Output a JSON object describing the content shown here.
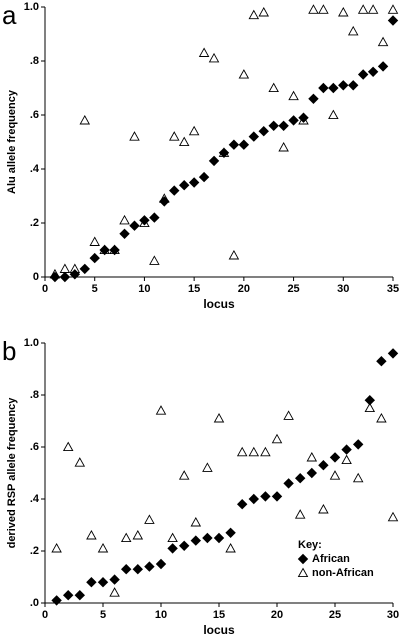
{
  "chart_data": [
    {
      "type": "scatter",
      "panel_label": "a",
      "x_label": "locus",
      "y_label": "Alu allele frequency",
      "xlim": [
        0,
        35
      ],
      "xticks": [
        0,
        5,
        10,
        15,
        20,
        25,
        30,
        35
      ],
      "ylim": [
        0,
        1
      ],
      "yticks": [
        0,
        {
          "value": 0.2,
          "label": ".2"
        },
        {
          "value": 0.4,
          "label": ".4"
        },
        {
          "value": 0.6,
          "label": ".6"
        },
        {
          "value": 0.8,
          "label": ".8"
        },
        {
          "value": 1,
          "label": "1.0"
        }
      ],
      "series": [
        {
          "marker": "diamond",
          "color": "#000000",
          "x": [
            1,
            2,
            3,
            4,
            5,
            6,
            7,
            8,
            9,
            10,
            11,
            12,
            13,
            14,
            15,
            16,
            17,
            18,
            19,
            20,
            21,
            22,
            23,
            24,
            25,
            26,
            27,
            28,
            29,
            30,
            31,
            32,
            33,
            34,
            35
          ],
          "values": [
            0.0,
            0.0,
            0.01,
            0.03,
            0.07,
            0.1,
            0.1,
            0.16,
            0.19,
            0.21,
            0.22,
            0.28,
            0.32,
            0.34,
            0.35,
            0.37,
            0.43,
            0.46,
            0.49,
            0.49,
            0.52,
            0.54,
            0.56,
            0.56,
            0.58,
            0.59,
            0.66,
            0.7,
            0.7,
            0.71,
            0.71,
            0.75,
            0.76,
            0.78,
            0.95
          ]
        },
        {
          "marker": "triangle",
          "color": "#000000",
          "x": [
            1,
            2,
            3,
            4,
            5,
            6,
            7,
            8,
            9,
            10,
            11,
            12,
            13,
            14,
            15,
            16,
            17,
            18,
            19,
            20,
            21,
            22,
            23,
            24,
            25,
            26,
            27,
            28,
            29,
            30,
            31,
            32,
            33,
            34,
            35
          ],
          "values": [
            0.01,
            0.03,
            0.03,
            0.58,
            0.13,
            0.1,
            0.1,
            0.21,
            0.52,
            0.2,
            0.06,
            0.29,
            0.52,
            0.5,
            0.54,
            0.83,
            0.81,
            0.46,
            0.08,
            0.75,
            0.97,
            0.98,
            0.7,
            0.48,
            0.67,
            0.58,
            0.99,
            0.99,
            0.6,
            0.98,
            0.91,
            0.99,
            0.99,
            0.87,
            0.99
          ]
        }
      ]
    },
    {
      "type": "scatter",
      "panel_label": "b",
      "x_label": "locus",
      "y_label": "derived RSP allele frequency",
      "xlim": [
        0,
        30
      ],
      "xticks": [
        0,
        5,
        10,
        15,
        20,
        25,
        30
      ],
      "ylim": [
        0,
        1
      ],
      "yticks": [
        {
          "value": 0,
          "label": ".0"
        },
        {
          "value": 0.2,
          "label": ".2"
        },
        {
          "value": 0.4,
          "label": ".4"
        },
        {
          "value": 0.6,
          "label": ".6"
        },
        {
          "value": 0.8,
          "label": ".8"
        },
        {
          "value": 1,
          "label": "1.0"
        }
      ],
      "legend_title": "Key:",
      "legend": "lower right",
      "series": [
        {
          "name": "African",
          "marker": "diamond",
          "color": "#000000",
          "x": [
            1,
            2,
            3,
            4,
            5,
            6,
            7,
            8,
            9,
            10,
            11,
            12,
            13,
            14,
            15,
            16,
            17,
            18,
            19,
            20,
            21,
            22,
            23,
            24,
            25,
            26,
            27,
            28,
            29,
            30
          ],
          "values": [
            0.01,
            0.03,
            0.03,
            0.08,
            0.08,
            0.09,
            0.13,
            0.13,
            0.14,
            0.15,
            0.21,
            0.22,
            0.24,
            0.25,
            0.25,
            0.27,
            0.38,
            0.4,
            0.41,
            0.41,
            0.46,
            0.48,
            0.5,
            0.53,
            0.56,
            0.59,
            0.61,
            0.78,
            0.93,
            0.96
          ]
        },
        {
          "name": "non-African",
          "marker": "triangle",
          "color": "#000000",
          "x": [
            1,
            2,
            3,
            4,
            5,
            6,
            7,
            8,
            9,
            10,
            11,
            12,
            13,
            14,
            15,
            16,
            17,
            18,
            19,
            20,
            21,
            22,
            23,
            24,
            25,
            26,
            27,
            28,
            29,
            30
          ],
          "values": [
            0.21,
            0.6,
            0.54,
            0.26,
            0.21,
            0.04,
            0.25,
            0.26,
            0.32,
            0.74,
            0.25,
            0.49,
            0.31,
            0.52,
            0.71,
            0.21,
            0.58,
            0.58,
            0.58,
            0.63,
            0.72,
            0.34,
            0.56,
            0.36,
            0.49,
            0.55,
            0.48,
            0.75,
            0.71,
            0.33
          ]
        }
      ]
    }
  ]
}
